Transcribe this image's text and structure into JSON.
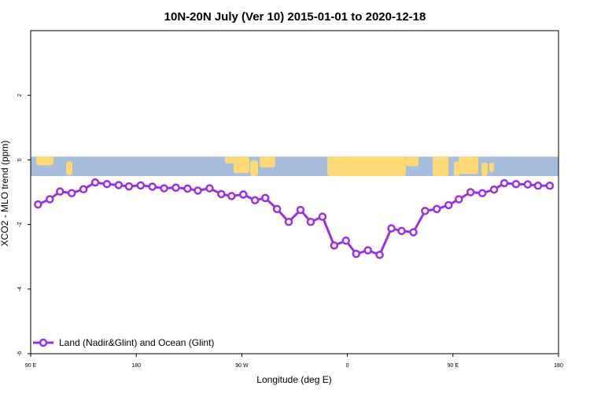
{
  "chart_data": {
    "type": "line",
    "title": "10N-20N July (Ver 10)   2015-01-01 to 2020-12-18",
    "xlabel": "Longitude (deg E)",
    "ylabel": "XCO2 - MLO trend (ppm)",
    "xlim": [
      -90,
      270
    ],
    "ylim": [
      -6,
      4
    ],
    "x_ticks": [
      {
        "value": -90,
        "label": "90 E"
      },
      {
        "value": -18,
        "label": "180"
      },
      {
        "value": 54,
        "label": "90 W"
      },
      {
        "value": 126,
        "label": "0"
      },
      {
        "value": 198,
        "label": "90 E"
      },
      {
        "value": 270,
        "label": "180"
      }
    ],
    "y_ticks": [
      {
        "value": -6,
        "label": "-6"
      },
      {
        "value": -4,
        "label": "-4"
      },
      {
        "value": -2,
        "label": "-2"
      },
      {
        "value": 0,
        "label": "0"
      },
      {
        "value": 2,
        "label": "2"
      }
    ],
    "grid": false,
    "legend_position": "bottom-left",
    "band": {
      "ymin": -0.5,
      "ymax": 0.1,
      "ocean_color": "#a6bddb",
      "land_color": "#fed976"
    },
    "series": [
      {
        "name": "Land (Nadir&Glint) and Ocean (Glint)",
        "color": "#9b30e0",
        "x": [
          -85,
          -77,
          -70,
          -62,
          -54,
          -46,
          -38,
          -30,
          -23,
          -15,
          -7,
          1,
          9,
          17,
          24,
          32,
          40,
          47,
          55,
          63,
          70,
          78,
          86,
          94,
          101,
          109,
          117,
          125,
          132,
          140,
          148,
          156,
          163,
          171,
          179,
          187,
          195,
          202,
          210,
          218,
          226,
          233,
          241,
          249,
          256,
          264
        ],
        "y": [
          -1.38,
          -1.22,
          -0.98,
          -1.03,
          -0.91,
          -0.7,
          -0.75,
          -0.78,
          -0.82,
          -0.79,
          -0.83,
          -0.88,
          -0.86,
          -0.89,
          -0.95,
          -0.88,
          -1.06,
          -1.12,
          -1.07,
          -1.25,
          -1.18,
          -1.52,
          -1.92,
          -1.55,
          -1.92,
          -1.76,
          -2.65,
          -2.5,
          -2.91,
          -2.8,
          -2.94,
          -2.12,
          -2.2,
          -2.24,
          -1.58,
          -1.52,
          -1.4,
          -1.22,
          -1.0,
          -1.03,
          -0.92,
          -0.72,
          -0.75,
          -0.76,
          -0.8,
          -0.8
        ]
      }
    ]
  }
}
